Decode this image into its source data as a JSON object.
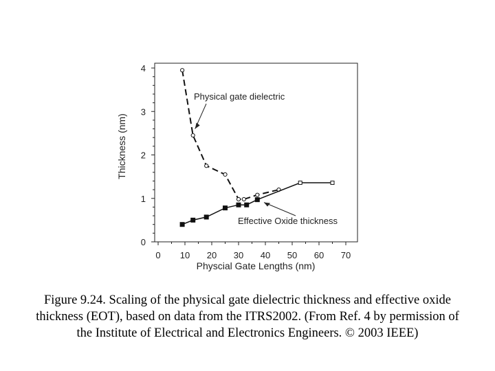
{
  "chart_data": {
    "type": "line",
    "xlabel": "Physcial Gate Lengths (nm)",
    "ylabel": "Thickness (nm)",
    "xlim": [
      0,
      70
    ],
    "ylim": [
      0,
      4
    ],
    "x_ticks": [
      "0",
      "10",
      "20",
      "30",
      "40",
      "50",
      "60",
      "70"
    ],
    "y_ticks": [
      "0",
      "1",
      "2",
      "3",
      "4"
    ],
    "grid": false,
    "series": [
      {
        "name": "Physical gate dielectric",
        "style": "dashed line, open circles",
        "color": "#111111",
        "points": [
          [
            9,
            3.95
          ],
          [
            13,
            2.45
          ],
          [
            18,
            1.75
          ],
          [
            25,
            1.55
          ],
          [
            30,
            0.98
          ],
          [
            32,
            0.98
          ],
          [
            37,
            1.08
          ],
          [
            45,
            1.2
          ]
        ]
      },
      {
        "name": "Effective Oxide thickness",
        "style": "solid line, filled squares then open squares",
        "color": "#111111",
        "points": [
          [
            9,
            0.4
          ],
          [
            13,
            0.5
          ],
          [
            18,
            0.57
          ],
          [
            25,
            0.78
          ],
          [
            30,
            0.85
          ],
          [
            33,
            0.85
          ],
          [
            37,
            0.97
          ],
          [
            53,
            1.36
          ],
          [
            65,
            1.36
          ]
        ],
        "open_from_index": 7
      }
    ],
    "annotations": [
      {
        "text": "Physical gate dielectric",
        "target_x": 13,
        "target_y": 2.6
      },
      {
        "text": "Effective Oxide thickness",
        "target_x": 40,
        "target_y": 0.97
      }
    ]
  },
  "caption": "Figure 9.24. Scaling of the physical gate dielectric thickness and effective oxide thickness (EOT), based on data from the ITRS2002. (From Ref. 4 by permission of the Institute of Electrical and Electronics Engineers. © 2003 IEEE)"
}
